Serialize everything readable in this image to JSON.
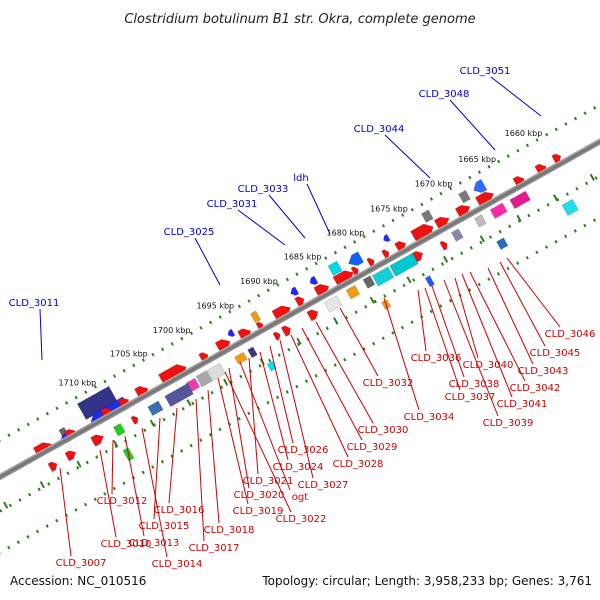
{
  "title": "Clostridium botulinum B1 str. Okra, complete genome",
  "footer": {
    "accession": "Accession: NC_010516",
    "topology": "Topology: circular; Length: 3,958,233 bp; Genes: 3,761"
  },
  "colors": {
    "backbone": "#808080",
    "scale_dots": "#2e7d1e",
    "upper_label": "#0000cc",
    "lower_label": "#cc0000"
  },
  "scale_ticks": [
    "1660 kbp",
    "1665 kbp",
    "1670 kbp",
    "1675 kbp",
    "1680 kbp",
    "1685 kbp",
    "1690 kbp",
    "1695 kbp",
    "1700 kbp",
    "1705 kbp",
    "1710 kbp"
  ],
  "upper_genes": [
    "CLD_3051",
    "CLD_3048",
    "CLD_3044",
    "ldh",
    "CLD_3033",
    "CLD_3031",
    "CLD_3025",
    "CLD_3011"
  ],
  "lower_genes": [
    "CLD_3046",
    "CLD_3045",
    "CLD_3043",
    "CLD_3042",
    "CLD_3041",
    "CLD_3040",
    "CLD_3039",
    "CLD_3038",
    "CLD_3037",
    "CLD_3036",
    "CLD_3034",
    "CLD_3032",
    "CLD_3030",
    "CLD_3029",
    "CLD_3028",
    "CLD_3027",
    "CLD_3026",
    "CLD_3024",
    "CLD_3021",
    "ogt",
    "CLD_3020",
    "CLD_3022",
    "CLD_3019",
    "CLD_3018",
    "CLD_3017",
    "CLD_3016",
    "CLD_3015",
    "CLD_3014",
    "CLD_3013",
    "CLD_3012",
    "CLD_3010",
    "CLD_3007"
  ]
}
